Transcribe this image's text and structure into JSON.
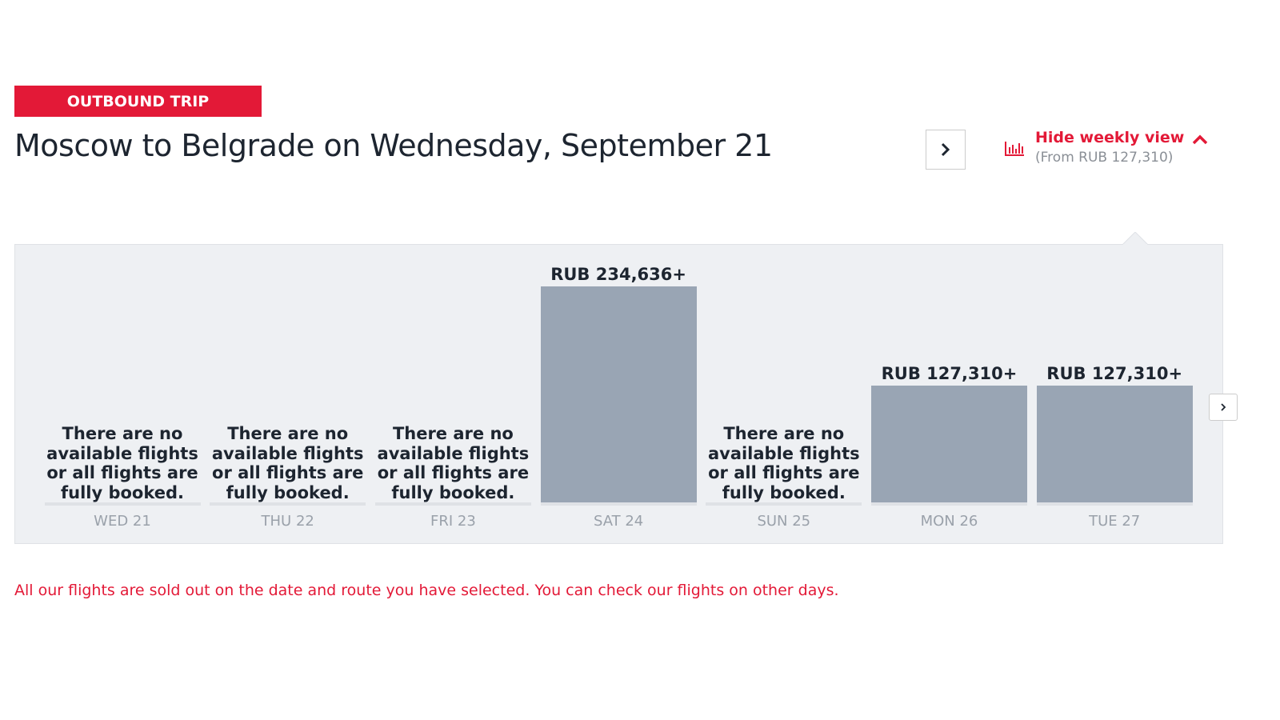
{
  "header": {
    "badge": "OUTBOUND TRIP",
    "title": "Moscow to Belgrade on Wednesday, September 21"
  },
  "weekly_toggle": {
    "label": "Hide weekly view",
    "subtitle": "(From RUB 127,310)"
  },
  "chart_data": {
    "type": "bar",
    "categories": [
      "WED 21",
      "THU 22",
      "FRI 23",
      "SAT 24",
      "SUN 25",
      "MON 26",
      "TUE 27"
    ],
    "values": [
      null,
      null,
      null,
      234636,
      null,
      127310,
      127310
    ],
    "value_labels": [
      "There are no available flights or all flights are fully booked.",
      "There are no available flights or all flights are fully booked.",
      "There are no available flights or all flights are fully booked.",
      "RUB 234,636+",
      "There are no available flights or all flights are fully booked.",
      "RUB 127,310+",
      "RUB 127,310+"
    ],
    "color": "#99a5b4"
  },
  "message": "All our flights are sold out on the date and route you have selected. You can check our flights on other days."
}
